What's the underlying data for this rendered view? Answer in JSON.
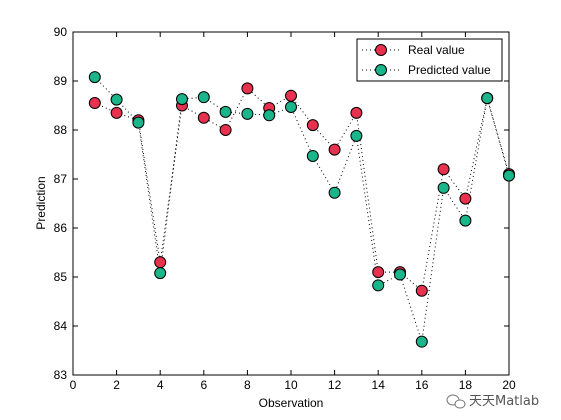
{
  "chart_data": {
    "type": "line",
    "title": "",
    "xlabel": "Observation",
    "ylabel": "Prediction",
    "xlim": [
      0,
      20
    ],
    "ylim": [
      83,
      90
    ],
    "xticks": [
      0,
      2,
      4,
      6,
      8,
      10,
      12,
      14,
      16,
      18,
      20
    ],
    "yticks": [
      83,
      84,
      85,
      86,
      87,
      88,
      89,
      90
    ],
    "x": [
      1,
      2,
      3,
      4,
      5,
      6,
      7,
      8,
      9,
      10,
      11,
      12,
      13,
      14,
      15,
      16,
      17,
      18,
      19,
      20
    ],
    "series": [
      {
        "name": "Real value",
        "color": "#e8304f",
        "values": [
          88.55,
          88.35,
          88.2,
          85.3,
          88.5,
          88.25,
          88.0,
          88.85,
          88.45,
          88.7,
          88.1,
          87.6,
          88.35,
          85.1,
          85.1,
          84.72,
          87.2,
          86.6,
          88.65,
          87.1
        ]
      },
      {
        "name": "Predicted value",
        "color": "#1ab58a",
        "values": [
          89.08,
          88.62,
          88.15,
          85.08,
          88.63,
          88.67,
          88.37,
          88.33,
          88.3,
          88.47,
          87.47,
          86.72,
          87.88,
          84.83,
          85.05,
          83.68,
          86.82,
          86.15,
          88.65,
          87.07
        ]
      }
    ],
    "grid": false,
    "legend_position": "top-right",
    "line_style": "dotted",
    "marker": "circle"
  },
  "watermark": {
    "text": "天天Matlab",
    "icon": "wechat-icon"
  }
}
